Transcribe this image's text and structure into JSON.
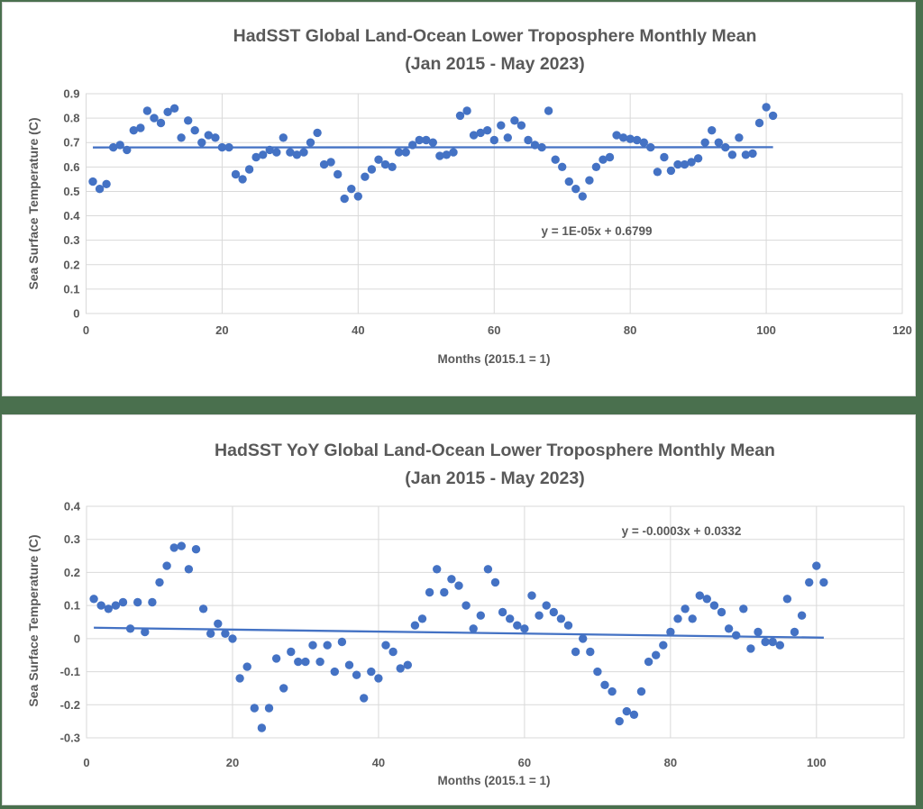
{
  "frame": {
    "background_color": "#4a704e",
    "panel_background": "#ffffff",
    "panel_border_color": "#d9d9d9",
    "gridline_color": "#d9d9d9"
  },
  "chart_data": [
    {
      "type": "scatter",
      "title": "HadSST Global Land-Ocean Lower Troposphere Monthly Mean",
      "subtitle": "(Jan 2015 - May 2023)",
      "ylabel": "Sea Surface Temperature (C)",
      "xlabel": "Months (2015.1 = 1)",
      "trend_equation": "y = 1E-05x + 0.6799",
      "trend_slope": 1e-05,
      "trend_intercept": 0.6799,
      "marker_color": "#4472c4",
      "trend_color": "#4472c4",
      "grid": true,
      "legend": "none",
      "xlim": [
        0,
        120
      ],
      "ylim": [
        0,
        0.9
      ],
      "x_ticks": [
        0,
        20,
        40,
        60,
        80,
        100,
        120
      ],
      "y_ticks": [
        "0.9",
        "0.8",
        "0.7",
        "0.6",
        "0.5",
        "0.4",
        "0.3",
        "0.2",
        "0.1",
        "0"
      ],
      "x_first": 1,
      "x_step": 1,
      "values": [
        0.54,
        0.51,
        0.53,
        0.68,
        0.69,
        0.67,
        0.75,
        0.76,
        0.83,
        0.8,
        0.78,
        0.825,
        0.84,
        0.72,
        0.79,
        0.75,
        0.7,
        0.73,
        0.72,
        0.68,
        0.68,
        0.57,
        0.55,
        0.59,
        0.64,
        0.65,
        0.67,
        0.66,
        0.72,
        0.66,
        0.65,
        0.66,
        0.7,
        0.74,
        0.61,
        0.62,
        0.57,
        0.47,
        0.51,
        0.48,
        0.56,
        0.59,
        0.63,
        0.61,
        0.6,
        0.66,
        0.66,
        0.69,
        0.71,
        0.71,
        0.7,
        0.645,
        0.65,
        0.66,
        0.81,
        0.83,
        0.73,
        0.74,
        0.75,
        0.71,
        0.77,
        0.72,
        0.79,
        0.77,
        0.71,
        0.69,
        0.68,
        0.83,
        0.63,
        0.6,
        0.54,
        0.51,
        0.48,
        0.545,
        0.6,
        0.63,
        0.64,
        0.73,
        0.72,
        0.715,
        0.71,
        0.7,
        0.68,
        0.58,
        0.64,
        0.585,
        0.61,
        0.61,
        0.62,
        0.635,
        0.7,
        0.75,
        0.7,
        0.68,
        0.65,
        0.72,
        0.65,
        0.655,
        0.78,
        0.845,
        0.81
      ]
    },
    {
      "type": "scatter",
      "title": "HadSST YoY Global Land-Ocean Lower Troposphere Monthly Mean",
      "subtitle": "(Jan 2015 - May 2023)",
      "ylabel": "Sea Surface Temperature (C)",
      "xlabel": "Months (2015.1 = 1)",
      "trend_equation": "y = -0.0003x + 0.0332",
      "trend_slope": -0.0003,
      "trend_intercept": 0.0332,
      "marker_color": "#4472c4",
      "trend_color": "#4472c4",
      "grid": true,
      "legend": "none",
      "xlim": [
        0,
        112
      ],
      "ylim": [
        -0.3,
        0.4
      ],
      "x_ticks": [
        0,
        20,
        40,
        60,
        80,
        100
      ],
      "y_ticks": [
        "0.4",
        "0.3",
        "0.2",
        "0.1",
        "0",
        "-0.1",
        "-0.2",
        "-0.3"
      ],
      "x_first": 1,
      "x_step": 1,
      "values": [
        0.12,
        0.1,
        0.09,
        0.1,
        0.11,
        0.03,
        0.11,
        0.02,
        0.11,
        0.17,
        0.22,
        0.275,
        0.28,
        0.21,
        0.27,
        0.09,
        0.015,
        0.045,
        0.015,
        0.0,
        -0.12,
        -0.085,
        -0.21,
        -0.27,
        -0.21,
        -0.06,
        -0.15,
        -0.04,
        -0.07,
        -0.07,
        -0.02,
        -0.07,
        -0.02,
        -0.1,
        -0.01,
        -0.08,
        -0.11,
        -0.18,
        -0.1,
        -0.12,
        -0.02,
        -0.04,
        -0.09,
        -0.08,
        0.04,
        0.06,
        0.14,
        0.21,
        0.14,
        0.18,
        0.16,
        0.1,
        0.03,
        0.07,
        0.21,
        0.17,
        0.08,
        0.06,
        0.04,
        0.03,
        0.13,
        0.07,
        0.1,
        0.08,
        0.06,
        0.04,
        -0.04,
        0.0,
        -0.04,
        -0.1,
        -0.14,
        -0.16,
        -0.25,
        -0.22,
        -0.23,
        -0.16,
        -0.07,
        -0.05,
        -0.02,
        0.02,
        0.06,
        0.09,
        0.06,
        0.13,
        0.12,
        0.1,
        0.08,
        0.03,
        0.01,
        0.09,
        -0.03,
        0.02,
        -0.01,
        -0.01,
        -0.02,
        0.12,
        0.02,
        0.07,
        0.17,
        0.22,
        0.17
      ]
    }
  ]
}
